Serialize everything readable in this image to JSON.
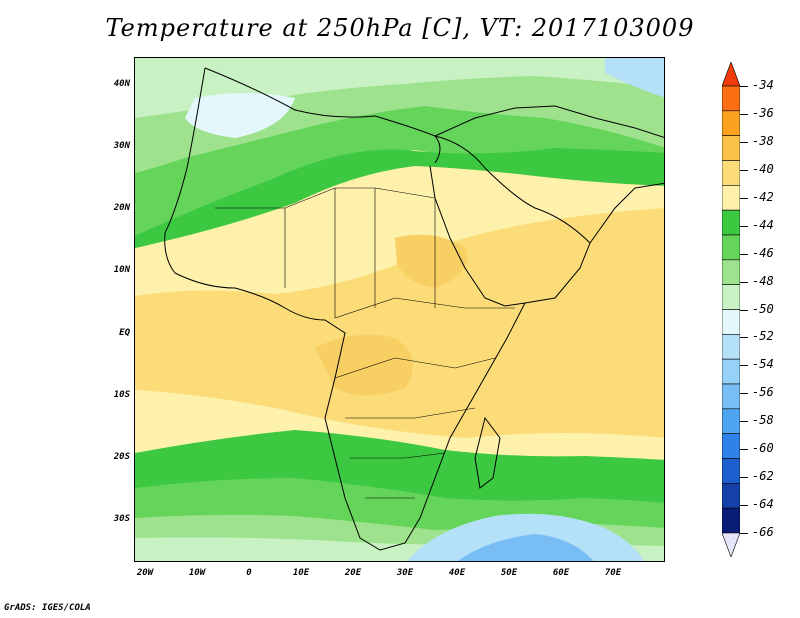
{
  "title": "Temperature at 250hPa [C], VT: 2017103009",
  "footer": "GrADS: IGES/COLA",
  "axes": {
    "y_ticks": [
      "40N",
      "30N",
      "20N",
      "10N",
      "EQ",
      "10S",
      "20S",
      "30S"
    ],
    "x_ticks": [
      "20W",
      "10W",
      "0",
      "10E",
      "20E",
      "30E",
      "40E",
      "50E",
      "60E",
      "70E"
    ]
  },
  "colorbar": {
    "levels": [
      "-34",
      "-36",
      "-38",
      "-40",
      "-42",
      "-44",
      "-46",
      "-48",
      "-50",
      "-52",
      "-54",
      "-56",
      "-58",
      "-60",
      "-62",
      "-64",
      "-66"
    ],
    "colors": [
      "#f03c0a",
      "#fa6e14",
      "#fca020",
      "#fbc24a",
      "#fbdc78",
      "#fdf1ac",
      "#3cc840",
      "#64d55a",
      "#9ee28e",
      "#c8f2c4",
      "#e4f8fb",
      "#b4e0f8",
      "#96d2f8",
      "#78bef5",
      "#50a5f0",
      "#2e82e8",
      "#1d5fcf",
      "#1441a8",
      "#0a1e78",
      "#e6e6fa"
    ]
  },
  "chart_data": {
    "type": "heatmap",
    "title": "Temperature at 250hPa [C], VT: 2017103009",
    "variable": "Temperature at 250hPa",
    "units": "C",
    "valid_time": "2017103009",
    "lon_range": [
      "20W",
      "80E"
    ],
    "lat_range": [
      "36S",
      "45N"
    ],
    "levels": [
      -66,
      -64,
      -62,
      -60,
      -58,
      -56,
      -54,
      -52,
      -50,
      -48,
      -46,
      -44,
      -42,
      -40,
      -38,
      -36,
      -34
    ],
    "summary": {
      "tropics_0_to_15N": "-42 to -44",
      "sahara_20N_25N": "-44 to -46",
      "mediterranean_30N_40N": "-46 to -50",
      "southern_africa_20S_30S": "-46 to -50",
      "south_indian_ocean_35S": "-52 to -56"
    }
  }
}
